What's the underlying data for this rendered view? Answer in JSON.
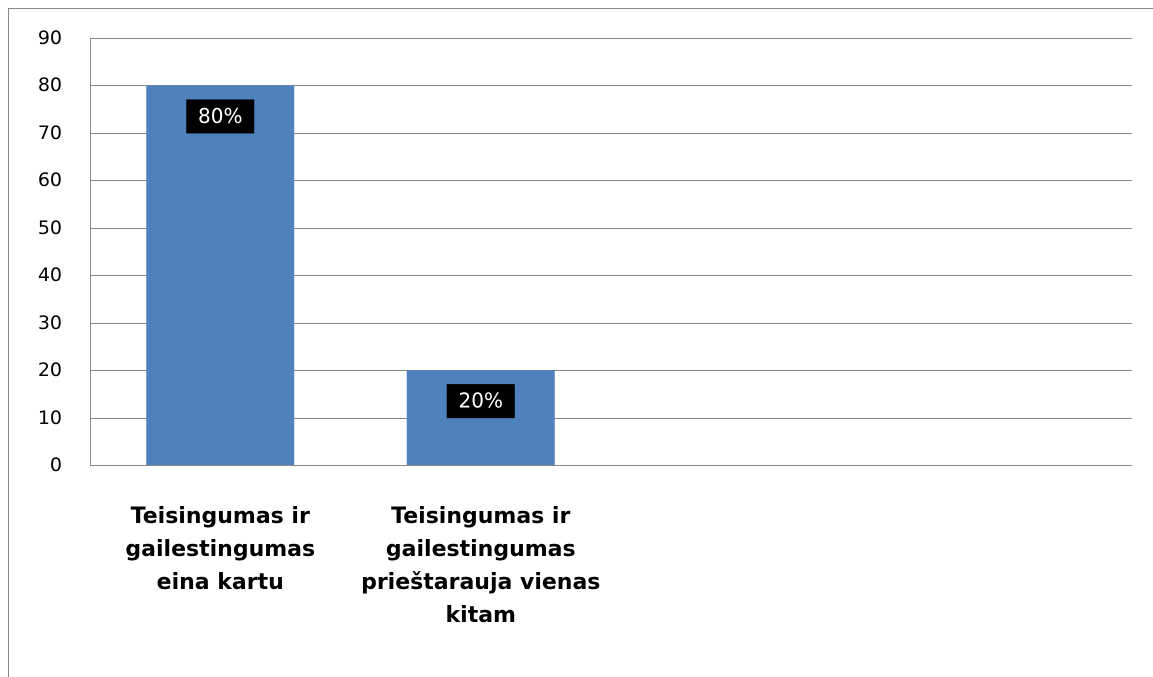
{
  "chart_data": {
    "type": "bar",
    "categories": [
      "Teisingumas ir gailestingumas eina kartu",
      "Teisingumas ir gailestingumas prieštarauja vienas kitam",
      null,
      null
    ],
    "values": [
      80,
      20,
      null,
      null
    ],
    "value_labels": [
      "80%",
      "20%",
      null,
      null
    ],
    "color": "#4f81bd",
    "ylim": [
      0,
      90
    ],
    "yticks": [
      0,
      10,
      20,
      30,
      40,
      50,
      60,
      70,
      80,
      90
    ],
    "grid": true
  }
}
